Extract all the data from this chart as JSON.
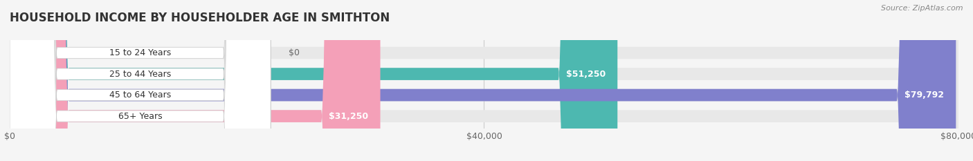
{
  "title": "HOUSEHOLD INCOME BY HOUSEHOLDER AGE IN SMITHTON",
  "source": "Source: ZipAtlas.com",
  "categories": [
    "15 to 24 Years",
    "25 to 44 Years",
    "45 to 64 Years",
    "65+ Years"
  ],
  "values": [
    0,
    51250,
    79792,
    31250
  ],
  "bar_colors": [
    "#c9a8d4",
    "#4db8b0",
    "#8080cc",
    "#f4a0b8"
  ],
  "background_color": "#f5f5f5",
  "bar_bg_color": "#e8e8e8",
  "xlim": [
    0,
    80000
  ],
  "xticks": [
    0,
    40000,
    80000
  ],
  "xtick_labels": [
    "$0",
    "$40,000",
    "$80,000"
  ],
  "title_fontsize": 12,
  "label_fontsize": 9,
  "value_fontsize": 9,
  "bar_height": 0.58
}
